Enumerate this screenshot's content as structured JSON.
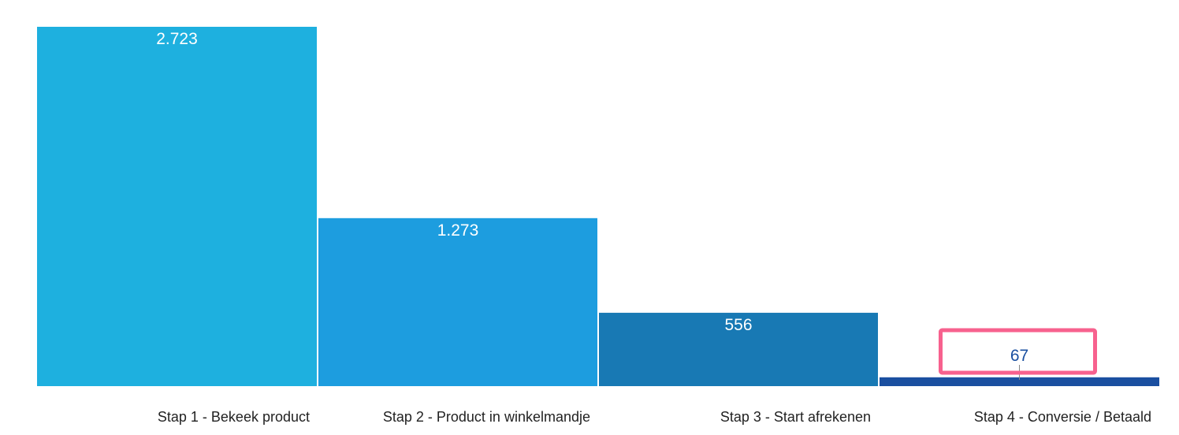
{
  "chart_data": {
    "type": "bar",
    "categories": [
      "Stap 1 - Bekeek product",
      "Stap 2 - Product in winkelmandje",
      "Stap 3 - Start afrekenen",
      "Stap 4 - Conversie / Betaald"
    ],
    "values": [
      2723,
      1273,
      556,
      67
    ],
    "value_labels": [
      "2.723",
      "1.273",
      "556",
      "67"
    ],
    "title": "",
    "xlabel": "",
    "ylabel": "",
    "ylim": [
      0,
      2723
    ],
    "grid": false,
    "legend": "none",
    "colors": [
      "#1eb0df",
      "#1d9ddf",
      "#1879b4",
      "#1a4fa0"
    ],
    "value_label_colors": [
      "#ffffff",
      "#ffffff",
      "#ffffff",
      "#1a4fa0"
    ],
    "highlight": {
      "category_index": 3,
      "color": "#f7618e"
    }
  }
}
